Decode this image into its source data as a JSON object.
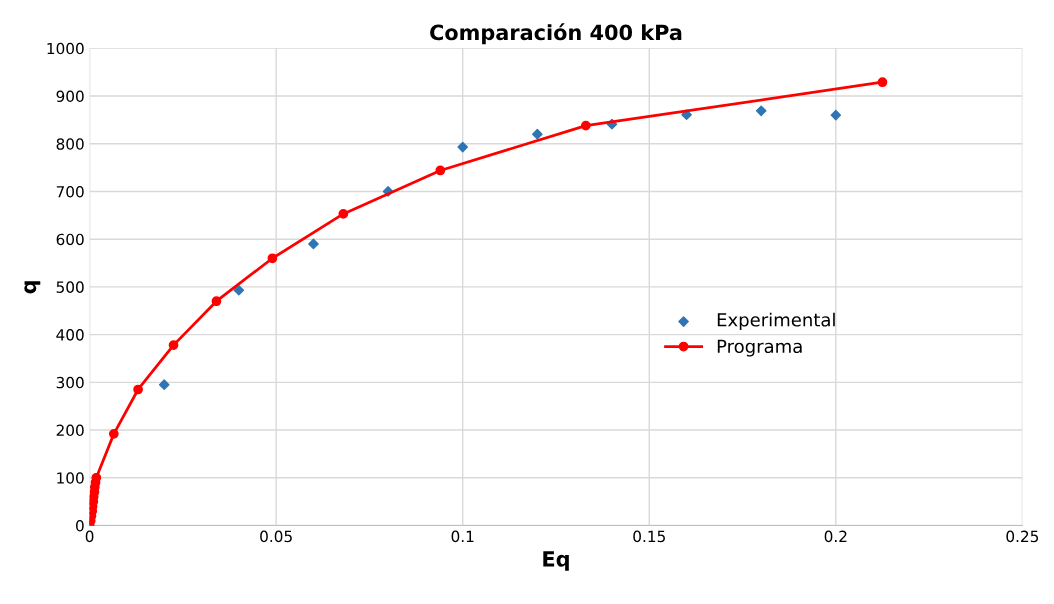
{
  "chart_data": {
    "type": "scatter",
    "title": "Comparación 400 kPa",
    "xlabel": "Eq",
    "ylabel": "q",
    "xlim": [
      0,
      0.25
    ],
    "xticks": [
      0,
      0.05,
      0.1,
      0.15,
      0.2,
      0.25
    ],
    "ylim": [
      0,
      1000
    ],
    "yticks": [
      0,
      100,
      200,
      300,
      400,
      500,
      600,
      700,
      800,
      900,
      1000
    ],
    "grid": true,
    "legend": "right",
    "series": [
      {
        "name": "Experimental",
        "marker": "diamond",
        "color": "#2e75b6",
        "x": [
          0,
          0.02,
          0.04,
          0.06,
          0.08,
          0.1,
          0.12,
          0.14,
          0.16,
          0.18,
          0.2
        ],
        "values": [
          0,
          295,
          493,
          590,
          700,
          793,
          820,
          841,
          861,
          869,
          860
        ]
      },
      {
        "name": "Programa",
        "type": "line",
        "marker": "circle",
        "line_style": "solid",
        "color": "#ff0000",
        "x": [
          0,
          0.0003,
          0.0005,
          0.0007,
          0.0008,
          0.001,
          0.0011,
          0.0013,
          0.0014,
          0.0016,
          0.0018,
          0.0065,
          0.013,
          0.0225,
          0.034,
          0.049,
          0.068,
          0.094,
          0.133,
          0.2125
        ],
        "values": [
          0,
          10,
          20,
          30,
          40,
          50,
          60,
          70,
          80,
          90,
          100,
          192,
          285,
          378,
          470,
          560,
          653,
          744,
          838,
          929
        ]
      }
    ]
  }
}
